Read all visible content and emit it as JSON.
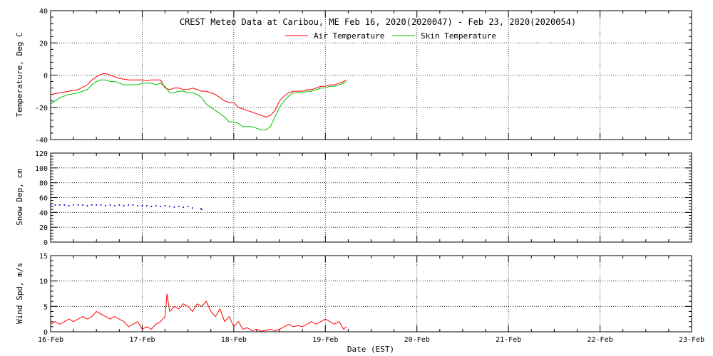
{
  "title": "CREST Meteo Data at Caribou, ME   Feb 16, 2020(2020047) - Feb 23, 2020(2020054)",
  "xlabel": "Date (EST)",
  "x_ticks": [
    "16-Feb",
    "17-Feb",
    "18-Feb",
    "19-Feb",
    "20-Feb",
    "21-Feb",
    "22-Feb",
    "23-Feb"
  ],
  "chart_data": [
    {
      "type": "line",
      "ylabel": "Temperature, Deg C",
      "xlim": [
        0,
        7
      ],
      "ylim": [
        -40,
        40
      ],
      "yticks": [
        "-40",
        "-20",
        "0",
        "20",
        "40"
      ],
      "grid": true,
      "legend": "top-center",
      "series": [
        {
          "name": "Air Temperature",
          "color": "#ff0000",
          "x": [
            0.0,
            0.1,
            0.2,
            0.3,
            0.4,
            0.45,
            0.5,
            0.55,
            0.6,
            0.65,
            0.7,
            0.75,
            0.8,
            0.85,
            0.9,
            0.95,
            1.0,
            1.05,
            1.1,
            1.15,
            1.2,
            1.25,
            1.3,
            1.35,
            1.4,
            1.45,
            1.5,
            1.55,
            1.6,
            1.65,
            1.7,
            1.75,
            1.8,
            1.85,
            1.9,
            1.95,
            2.0,
            2.05,
            2.1,
            2.15,
            2.2,
            2.25,
            2.3,
            2.35,
            2.4,
            2.45,
            2.5,
            2.55,
            2.6,
            2.65,
            2.7,
            2.75,
            2.8,
            2.85,
            2.9,
            2.95,
            3.0,
            3.05,
            3.1,
            3.15,
            3.2,
            3.23
          ],
          "y": [
            -12,
            -11,
            -10,
            -9,
            -6,
            -3,
            -1,
            0.5,
            1,
            0,
            -1,
            -2,
            -2.5,
            -3,
            -3,
            -3,
            -3,
            -3.5,
            -3,
            -3,
            -3,
            -8,
            -9,
            -8,
            -8,
            -9,
            -9,
            -8,
            -9,
            -10,
            -10,
            -11,
            -12,
            -14,
            -16,
            -17,
            -17,
            -20,
            -21,
            -22,
            -23,
            -24,
            -25,
            -26,
            -25,
            -22,
            -16,
            -13,
            -11,
            -10,
            -10,
            -10,
            -9,
            -9,
            -8,
            -7,
            -7,
            -6,
            -6,
            -5,
            -4,
            -3
          ]
        },
        {
          "name": "Skin Temperature",
          "color": "#00c000",
          "x": [
            0.0,
            0.1,
            0.2,
            0.3,
            0.4,
            0.45,
            0.5,
            0.55,
            0.6,
            0.65,
            0.7,
            0.75,
            0.8,
            0.85,
            0.9,
            0.95,
            1.0,
            1.05,
            1.1,
            1.15,
            1.2,
            1.25,
            1.3,
            1.35,
            1.4,
            1.45,
            1.5,
            1.55,
            1.6,
            1.65,
            1.7,
            1.75,
            1.8,
            1.85,
            1.9,
            1.95,
            2.0,
            2.05,
            2.1,
            2.15,
            2.2,
            2.25,
            2.3,
            2.35,
            2.4,
            2.45,
            2.5,
            2.55,
            2.6,
            2.65,
            2.7,
            2.75,
            2.8,
            2.85,
            2.9,
            2.95,
            3.0,
            3.05,
            3.1,
            3.15,
            3.2,
            3.23
          ],
          "y": [
            -18,
            -14,
            -12,
            -11,
            -9,
            -6,
            -4,
            -3,
            -3,
            -4,
            -4,
            -5,
            -6,
            -6,
            -6,
            -6,
            -5,
            -5,
            -5,
            -6,
            -5,
            -7,
            -11,
            -11,
            -10,
            -10,
            -11,
            -11,
            -12,
            -14,
            -18,
            -20,
            -22,
            -24,
            -26,
            -29,
            -29,
            -30,
            -32,
            -32,
            -32,
            -33,
            -34,
            -34,
            -32,
            -26,
            -20,
            -16,
            -13,
            -11,
            -11,
            -11,
            -10,
            -10,
            -9,
            -8,
            -8,
            -7,
            -7,
            -6,
            -5,
            -4
          ]
        }
      ]
    },
    {
      "type": "scatter",
      "ylabel": "Snow Dep, cm",
      "xlim": [
        0,
        7
      ],
      "ylim": [
        0,
        120
      ],
      "yticks": [
        "0",
        "20",
        "40",
        "60",
        "80",
        "100",
        "120"
      ],
      "grid": true,
      "series": [
        {
          "color": "#0000c0",
          "x": [
            0.0,
            0.05,
            0.1,
            0.15,
            0.2,
            0.25,
            0.3,
            0.35,
            0.4,
            0.45,
            0.5,
            0.55,
            0.6,
            0.65,
            0.7,
            0.75,
            0.8,
            0.85,
            0.9,
            0.95,
            1.0,
            1.05,
            1.1,
            1.15,
            1.2,
            1.25,
            1.3,
            1.35,
            1.4,
            1.45,
            1.5,
            1.55,
            1.64,
            1.65
          ],
          "y": [
            50,
            50,
            50,
            50,
            49,
            50,
            50,
            50,
            49,
            50,
            50,
            50,
            49,
            50,
            49,
            50,
            49,
            50,
            50,
            49,
            49,
            49,
            48,
            49,
            48,
            49,
            48,
            47,
            48,
            47,
            48,
            46,
            45,
            44
          ]
        }
      ]
    },
    {
      "type": "line",
      "ylabel": "Wind Spd, m/s",
      "xlim": [
        0,
        7
      ],
      "ylim": [
        0,
        15
      ],
      "yticks": [
        "0",
        "5",
        "10",
        "15"
      ],
      "grid": true,
      "series": [
        {
          "color": "#ff0000",
          "x": [
            0.0,
            0.05,
            0.1,
            0.15,
            0.2,
            0.25,
            0.3,
            0.35,
            0.4,
            0.45,
            0.5,
            0.55,
            0.6,
            0.65,
            0.7,
            0.75,
            0.8,
            0.85,
            0.9,
            0.95,
            1.0,
            1.05,
            1.1,
            1.15,
            1.2,
            1.25,
            1.27,
            1.3,
            1.35,
            1.4,
            1.45,
            1.5,
            1.55,
            1.6,
            1.65,
            1.7,
            1.75,
            1.8,
            1.85,
            1.9,
            1.95,
            2.0,
            2.05,
            2.1,
            2.15,
            2.2,
            2.25,
            2.3,
            2.35,
            2.4,
            2.45,
            2.5,
            2.55,
            2.6,
            2.65,
            2.7,
            2.75,
            2.8,
            2.85,
            2.9,
            2.95,
            3.0,
            3.05,
            3.1,
            3.15,
            3.2,
            3.23
          ],
          "y": [
            1.5,
            2,
            1.5,
            2,
            2.5,
            2,
            2.5,
            3,
            2.5,
            3,
            4,
            3.5,
            3,
            2.5,
            3,
            2.5,
            2,
            1,
            1.5,
            2,
            0.5,
            1,
            0.5,
            1.5,
            2,
            3,
            7.5,
            4,
            5,
            4.5,
            5.5,
            5,
            4,
            5.5,
            5,
            6,
            4,
            3,
            4.5,
            2,
            3,
            1,
            2,
            0.5,
            0.8,
            0.2,
            0.5,
            0.1,
            0.3,
            0.5,
            0.2,
            0.5,
            1,
            1.5,
            1,
            1.2,
            1,
            1.5,
            2,
            1.5,
            2,
            2.5,
            2,
            1.5,
            2,
            0.5,
            1
          ]
        }
      ]
    }
  ]
}
